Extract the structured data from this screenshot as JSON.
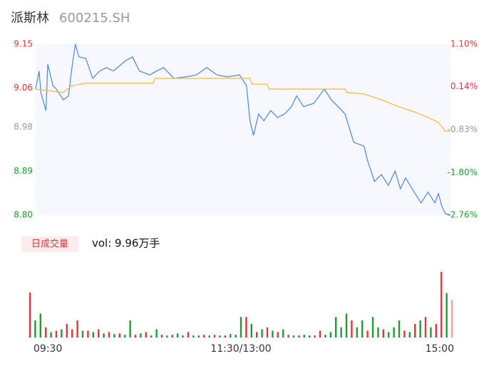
{
  "chart_data": [
    {
      "type": "line",
      "title": "派斯林",
      "subtitle": "600215.SH",
      "xlim": [
        0,
        240
      ],
      "ylim": [
        8.8,
        9.15
      ],
      "yticks": [
        9.15,
        9.06,
        8.98,
        8.89,
        {
          "value": 8.8,
          "label": "8.80"
        }
      ],
      "ytick_colors": [
        "#e8323c",
        "#e8323c",
        "#999999",
        "#1a9e2e",
        "#1a9e2e"
      ],
      "y2lim": [
        -2.76,
        1.1
      ],
      "y2ticks": [
        {
          "value": 1.1,
          "label": "1.10%"
        },
        {
          "value": 0.14,
          "label": "0.14%"
        },
        {
          "value": -0.83,
          "label": "-0.83%"
        },
        {
          "value": -1.8,
          "label": "-1.80%"
        },
        {
          "value": -2.76,
          "label": "-2.76%"
        }
      ],
      "series": [
        {
          "color": "#4a86e8",
          "x": [
            0,
            2,
            3,
            6,
            7,
            10,
            12,
            16,
            19,
            21,
            23,
            25,
            29,
            33,
            37,
            41,
            45,
            52,
            56,
            60,
            66,
            70,
            74,
            80,
            87,
            93,
            99,
            105,
            111,
            118,
            122,
            124,
            126,
            129,
            132,
            136,
            140,
            144,
            148,
            151,
            155,
            161,
            167,
            171,
            175,
            179,
            184,
            190,
            192,
            196,
            200,
            204,
            208,
            211,
            214,
            219,
            223,
            227,
            231,
            233,
            235,
            237,
            240
          ],
          "values": [
            9.058,
            9.095,
            9.051,
            9.014,
            9.109,
            9.065,
            9.058,
            9.036,
            9.044,
            9.102,
            9.15,
            9.124,
            9.121,
            9.08,
            9.095,
            9.102,
            9.095,
            9.116,
            9.124,
            9.095,
            9.087,
            9.095,
            9.102,
            9.08,
            9.083,
            9.087,
            9.102,
            9.087,
            9.083,
            9.087,
            9.065,
            8.993,
            8.963,
            9.007,
            8.993,
            9.014,
            9.0,
            9.007,
            9.022,
            9.044,
            9.022,
            9.029,
            9.058,
            9.036,
            9.022,
            9.007,
            8.949,
            8.941,
            8.912,
            8.869,
            8.883,
            8.861,
            8.89,
            8.854,
            8.876,
            8.847,
            8.825,
            8.847,
            8.825,
            8.844,
            8.818,
            8.803,
            8.8
          ]
        },
        {
          "color": "#f5b83d",
          "x": [
            0,
            16,
            21,
            29,
            68,
            69,
            124,
            125,
            134,
            135,
            179,
            180,
            190,
            200,
            210,
            220,
            227,
            233,
            237,
            240
          ],
          "values": [
            9.058,
            9.051,
            9.065,
            9.07,
            9.07,
            9.08,
            9.08,
            9.068,
            9.068,
            9.058,
            9.058,
            9.051,
            9.048,
            9.036,
            9.022,
            9.01,
            9.0,
            8.99,
            8.972,
            8.972
          ]
        }
      ]
    },
    {
      "type": "bar",
      "label": "日成交量",
      "text": "vol: 9.96万手",
      "xlim": [
        0,
        240
      ],
      "ylim": [
        0,
        100
      ],
      "xticks": [
        {
          "value": 0,
          "label": "09:30"
        },
        {
          "value": 120,
          "label": "11:30/13:00"
        },
        {
          "value": 240,
          "label": "15:00"
        }
      ],
      "x": [
        0,
        3,
        6,
        9,
        12,
        15,
        18,
        21,
        24,
        27,
        30,
        33,
        36,
        39,
        42,
        45,
        48,
        51,
        54,
        57,
        60,
        63,
        66,
        69,
        72,
        75,
        78,
        81,
        84,
        87,
        90,
        93,
        96,
        99,
        102,
        105,
        108,
        111,
        114,
        117,
        120,
        123,
        126,
        129,
        132,
        135,
        138,
        141,
        144,
        147,
        150,
        153,
        156,
        159,
        162,
        165,
        168,
        171,
        174,
        177,
        180,
        183,
        186,
        189,
        192,
        195,
        198,
        201,
        204,
        207,
        210,
        213,
        216,
        219,
        222,
        225,
        228,
        231,
        234,
        237,
        240
      ],
      "values": [
        66,
        25,
        35,
        15,
        8,
        10,
        12,
        20,
        12,
        25,
        10,
        10,
        8,
        12,
        6,
        8,
        5,
        6,
        4,
        25,
        4,
        6,
        8,
        3,
        12,
        4,
        3,
        4,
        6,
        3,
        8,
        3,
        3,
        4,
        3,
        4,
        3,
        3,
        5,
        4,
        30,
        30,
        20,
        8,
        12,
        15,
        10,
        8,
        12,
        4,
        3,
        3,
        4,
        3,
        3,
        10,
        4,
        8,
        30,
        15,
        35,
        25,
        15,
        25,
        10,
        30,
        15,
        12,
        8,
        15,
        25,
        10,
        8,
        20,
        25,
        30,
        15,
        20,
        96,
        65,
        55
      ],
      "colors": [
        "#e8323c",
        "#1a9e2e",
        "#1a9e2e",
        "#e8323c",
        "#1a9e2e",
        "#e8323c",
        "#1a9e2e",
        "#e8323c",
        "#e8323c",
        "#e8323c",
        "#1a9e2e",
        "#e8323c",
        "#1a9e2e",
        "#e8323c",
        "#1a9e2e",
        "#e8323c",
        "#1a9e2e",
        "#e8323c",
        "#1a9e2e",
        "#1a9e2e",
        "#e8323c",
        "#1a9e2e",
        "#e8323c",
        "#1a9e2e",
        "#1a9e2e",
        "#e8323c",
        "#1a9e2e",
        "#e8323c",
        "#1a9e2e",
        "#e8323c",
        "#e8323c",
        "#1a9e2e",
        "#1a9e2e",
        "#e8323c",
        "#1a9e2e",
        "#e8323c",
        "#1a9e2e",
        "#e8323c",
        "#1a9e2e",
        "#1a9e2e",
        "#1a9e2e",
        "#e8323c",
        "#1a9e2e",
        "#e8323c",
        "#1a9e2e",
        "#e8323c",
        "#1a9e2e",
        "#e8323c",
        "#1a9e2e",
        "#e8323c",
        "#1a9e2e",
        "#e8323c",
        "#1a9e2e",
        "#1a9e2e",
        "#e8323c",
        "#e8323c",
        "#1a9e2e",
        "#1a9e2e",
        "#1a9e2e",
        "#1a9e2e",
        "#1a9e2e",
        "#e8323c",
        "#1a9e2e",
        "#1a9e2e",
        "#e8323c",
        "#1a9e2e",
        "#1a9e2e",
        "#e8323c",
        "#1a9e2e",
        "#1a9e2e",
        "#1a9e2e",
        "#e8323c",
        "#1a9e2e",
        "#e8323c",
        "#1a9e2e",
        "#e8323c",
        "#1a9e2e",
        "#e8323c",
        "#e8323c",
        "#1a9e2e",
        "#f4a0a4"
      ]
    }
  ]
}
